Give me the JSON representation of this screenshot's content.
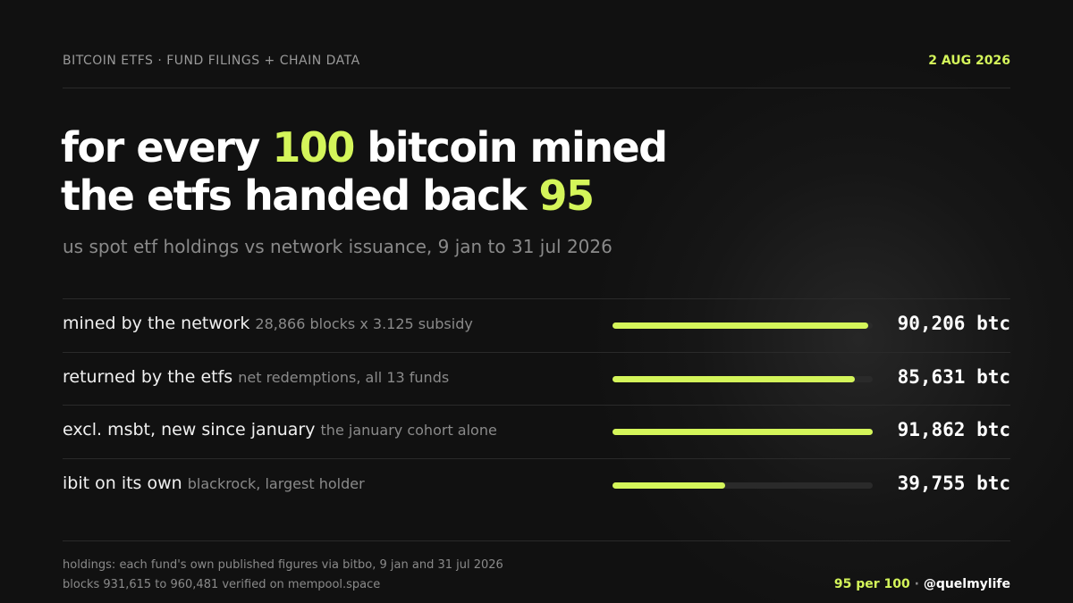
{
  "header": {
    "source": "BITCOIN ETFS · FUND FILINGS + CHAIN DATA",
    "date": "2 AUG 2026"
  },
  "headline": {
    "lines": [
      [
        {
          "text": "for every "
        },
        {
          "text": "100",
          "highlight": true
        },
        {
          "text": " bitcoin mined"
        }
      ],
      [
        {
          "text": "the etfs handed back "
        },
        {
          "text": "95",
          "highlight": true
        }
      ]
    ]
  },
  "subtitle": "us spot etf holdings vs network issuance, 9 jan to 31 jul 2026",
  "chart_data": {
    "type": "bar",
    "orientation": "horizontal",
    "categories": [
      "mined by the network",
      "returned by the etfs",
      "excl. msbt, new since january",
      "ibit on its own"
    ],
    "notes": [
      "28,866 blocks x 3.125 subsidy",
      "net redemptions, all 13 funds",
      "the january cohort alone",
      "blackrock, largest holder"
    ],
    "values": [
      90206,
      85631,
      91862,
      39755
    ],
    "value_labels": [
      "90,206 btc",
      "85,631 btc",
      "91,862 btc",
      "39,755 btc"
    ],
    "color": "#d4f55a",
    "track_color": "#2a2a2a"
  },
  "footer": {
    "notes": [
      "holdings: each fund's own published figures via bitbo, 9 jan and 31 jul 2026",
      "blocks 931,615 to 960,481 verified on mempool.space"
    ],
    "tagline": "95 per 100",
    "separator": " · ",
    "handle": "@quelmylife"
  }
}
